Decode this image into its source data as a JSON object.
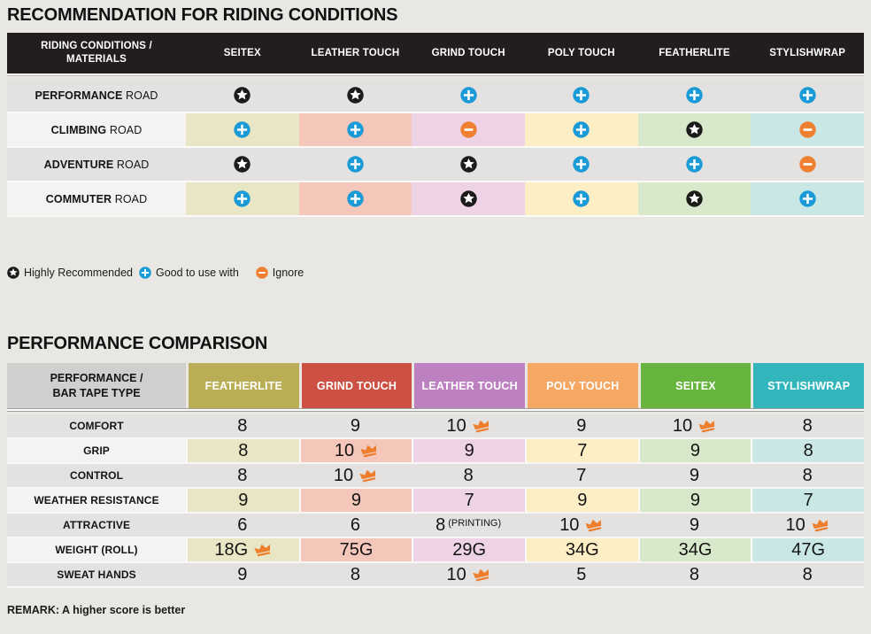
{
  "colors": {
    "page_bg": "#e8e7e4",
    "table1_header_bg": "#221e1d",
    "column_tints": [
      "#e9e6c5",
      "#f5c7ba",
      "#edd3e5",
      "#fdeec5",
      "#d8e9cb",
      "#c9e7e5"
    ],
    "table2_header_colors": [
      "#b9ad56",
      "#cc5144",
      "#bd80c0",
      "#f5a863",
      "#67b43e",
      "#32b6bc"
    ],
    "table2_corner_bg": "#d0cfcd",
    "badge_star": "#1d1b1a",
    "badge_plus": "#1a9bd7",
    "badge_minus": "#ef8031",
    "crown": "#ee7d2c"
  },
  "chart_data": [
    {
      "type": "table",
      "title": "RECOMMENDATION FOR RIDING CONDITIONS",
      "corner_label": "RIDING CONDITIONS / MATERIALS",
      "columns": [
        "SEITEX",
        "LEATHER TOUCH",
        "GRIND TOUCH",
        "POLY TOUCH",
        "FEATHERLITE",
        "STYLISHWRAP"
      ],
      "rows": [
        {
          "label_bold": "PERFORMANCE",
          "label_rest": "ROAD",
          "tinted": false,
          "values": [
            "star",
            "star",
            "plus",
            "plus",
            "plus",
            "plus"
          ]
        },
        {
          "label_bold": "CLIMBING",
          "label_rest": "ROAD",
          "tinted": true,
          "values": [
            "plus",
            "plus",
            "minus",
            "plus",
            "star",
            "minus"
          ]
        },
        {
          "label_bold": "ADVENTURE",
          "label_rest": "ROAD",
          "tinted": false,
          "values": [
            "star",
            "plus",
            "star",
            "plus",
            "plus",
            "minus"
          ]
        },
        {
          "label_bold": "COMMUTER",
          "label_rest": "ROAD",
          "tinted": true,
          "values": [
            "plus",
            "plus",
            "star",
            "plus",
            "star",
            "plus"
          ]
        }
      ],
      "legend": [
        {
          "icon": "star",
          "label": "Highly Recommended"
        },
        {
          "icon": "plus",
          "label": "Good to use with"
        },
        {
          "icon": "minus",
          "label": "Ignore"
        }
      ]
    },
    {
      "type": "table",
      "title": "PERFORMANCE COMPARISON",
      "corner_label": "PERFORMANCE / BAR TAPE TYPE",
      "columns": [
        "FEATHERLITE",
        "GRIND TOUCH",
        "LEATHER TOUCH",
        "POLY TOUCH",
        "SEITEX",
        "STYLISHWRAP"
      ],
      "rows": [
        {
          "label": "COMFORT",
          "tinted": false,
          "values": [
            {
              "v": "8"
            },
            {
              "v": "9"
            },
            {
              "v": "10",
              "best": true
            },
            {
              "v": "9"
            },
            {
              "v": "10",
              "best": true
            },
            {
              "v": "8"
            }
          ]
        },
        {
          "label": "GRIP",
          "tinted": true,
          "values": [
            {
              "v": "8"
            },
            {
              "v": "10",
              "best": true
            },
            {
              "v": "9"
            },
            {
              "v": "7"
            },
            {
              "v": "9"
            },
            {
              "v": "8"
            }
          ]
        },
        {
          "label": "CONTROL",
          "tinted": false,
          "values": [
            {
              "v": "8"
            },
            {
              "v": "10",
              "best": true
            },
            {
              "v": "8"
            },
            {
              "v": "7"
            },
            {
              "v": "9"
            },
            {
              "v": "8"
            }
          ]
        },
        {
          "label": "WEATHER RESISTANCE",
          "tinted": true,
          "values": [
            {
              "v": "9"
            },
            {
              "v": "9"
            },
            {
              "v": "7"
            },
            {
              "v": "9"
            },
            {
              "v": "9"
            },
            {
              "v": "7"
            }
          ]
        },
        {
          "label": "ATTRACTIVE",
          "tinted": false,
          "values": [
            {
              "v": "6"
            },
            {
              "v": "6"
            },
            {
              "v": "8",
              "suffix": "(PRINTING)"
            },
            {
              "v": "10",
              "best": true
            },
            {
              "v": "9"
            },
            {
              "v": "10",
              "best": true
            }
          ]
        },
        {
          "label": "WEIGHT (ROLL)",
          "tinted": true,
          "values": [
            {
              "v": "18G",
              "best": true
            },
            {
              "v": "75G"
            },
            {
              "v": "29G"
            },
            {
              "v": "34G"
            },
            {
              "v": "34G"
            },
            {
              "v": "47G"
            }
          ]
        },
        {
          "label": "SWEAT HANDS",
          "tinted": false,
          "values": [
            {
              "v": "9"
            },
            {
              "v": "8"
            },
            {
              "v": "10",
              "best": true
            },
            {
              "v": "5"
            },
            {
              "v": "8"
            },
            {
              "v": "8"
            }
          ]
        }
      ],
      "best_marker": "crown-icon",
      "remark": "REMARK: A higher score is better"
    }
  ]
}
